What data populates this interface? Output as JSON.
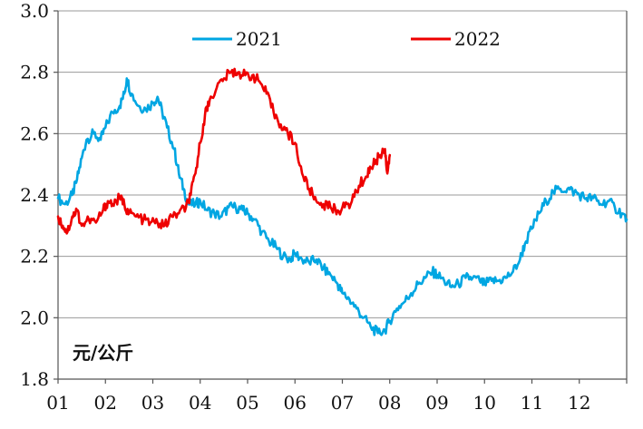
{
  "chart_data": {
    "type": "line",
    "title": "",
    "xlabel": "",
    "ylabel": "",
    "unit_label": "元/公斤",
    "x_ticks": [
      "01",
      "02",
      "03",
      "04",
      "05",
      "06",
      "07",
      "08",
      "09",
      "10",
      "11",
      "12"
    ],
    "y_ticks": [
      "1.8",
      "2.0",
      "2.2",
      "2.4",
      "2.6",
      "2.8",
      "3.0"
    ],
    "ylim": [
      1.8,
      3.0
    ],
    "xlim": [
      1,
      13
    ],
    "grid": true,
    "legend_position": "top",
    "series": [
      {
        "name": "2021",
        "color": "#00A6E2",
        "points": [
          [
            1.0,
            2.39
          ],
          [
            1.15,
            2.37
          ],
          [
            1.3,
            2.4
          ],
          [
            1.4,
            2.45
          ],
          [
            1.5,
            2.52
          ],
          [
            1.6,
            2.58
          ],
          [
            1.75,
            2.6
          ],
          [
            1.9,
            2.58
          ],
          [
            2.0,
            2.62
          ],
          [
            2.15,
            2.67
          ],
          [
            2.3,
            2.69
          ],
          [
            2.4,
            2.73
          ],
          [
            2.45,
            2.78
          ],
          [
            2.55,
            2.73
          ],
          [
            2.7,
            2.69
          ],
          [
            2.85,
            2.68
          ],
          [
            3.0,
            2.7
          ],
          [
            3.1,
            2.72
          ],
          [
            3.2,
            2.67
          ],
          [
            3.3,
            2.62
          ],
          [
            3.45,
            2.55
          ],
          [
            3.55,
            2.47
          ],
          [
            3.65,
            2.42
          ],
          [
            3.75,
            2.37
          ],
          [
            3.9,
            2.37
          ],
          [
            4.0,
            2.38
          ],
          [
            4.15,
            2.35
          ],
          [
            4.3,
            2.34
          ],
          [
            4.45,
            2.33
          ],
          [
            4.6,
            2.36
          ],
          [
            4.75,
            2.36
          ],
          [
            4.9,
            2.35
          ],
          [
            5.0,
            2.34
          ],
          [
            5.15,
            2.32
          ],
          [
            5.3,
            2.28
          ],
          [
            5.45,
            2.25
          ],
          [
            5.6,
            2.23
          ],
          [
            5.75,
            2.2
          ],
          [
            5.9,
            2.19
          ],
          [
            6.0,
            2.21
          ],
          [
            6.15,
            2.19
          ],
          [
            6.3,
            2.18
          ],
          [
            6.45,
            2.19
          ],
          [
            6.6,
            2.16
          ],
          [
            6.75,
            2.14
          ],
          [
            6.9,
            2.11
          ],
          [
            7.0,
            2.08
          ],
          [
            7.15,
            2.06
          ],
          [
            7.3,
            2.03
          ],
          [
            7.45,
            2.0
          ],
          [
            7.6,
            1.97
          ],
          [
            7.75,
            1.95
          ],
          [
            7.9,
            1.96
          ],
          [
            8.0,
            1.99
          ],
          [
            8.15,
            2.03
          ],
          [
            8.3,
            2.05
          ],
          [
            8.45,
            2.08
          ],
          [
            8.6,
            2.11
          ],
          [
            8.75,
            2.13
          ],
          [
            8.9,
            2.15
          ],
          [
            9.0,
            2.14
          ],
          [
            9.15,
            2.12
          ],
          [
            9.3,
            2.1
          ],
          [
            9.45,
            2.11
          ],
          [
            9.6,
            2.13
          ],
          [
            9.75,
            2.13
          ],
          [
            9.9,
            2.12
          ],
          [
            10.0,
            2.11
          ],
          [
            10.15,
            2.12
          ],
          [
            10.3,
            2.12
          ],
          [
            10.45,
            2.13
          ],
          [
            10.6,
            2.15
          ],
          [
            10.75,
            2.19
          ],
          [
            10.85,
            2.24
          ],
          [
            11.0,
            2.29
          ],
          [
            11.15,
            2.34
          ],
          [
            11.3,
            2.38
          ],
          [
            11.45,
            2.41
          ],
          [
            11.6,
            2.42
          ],
          [
            11.75,
            2.42
          ],
          [
            11.9,
            2.41
          ],
          [
            12.0,
            2.4
          ],
          [
            12.15,
            2.39
          ],
          [
            12.3,
            2.39
          ],
          [
            12.45,
            2.37
          ],
          [
            12.6,
            2.38
          ],
          [
            12.75,
            2.36
          ],
          [
            12.9,
            2.34
          ],
          [
            13.0,
            2.32
          ]
        ]
      },
      {
        "name": "2022",
        "color": "#EE0000",
        "points": [
          [
            1.0,
            2.33
          ],
          [
            1.1,
            2.3
          ],
          [
            1.2,
            2.28
          ],
          [
            1.3,
            2.33
          ],
          [
            1.4,
            2.35
          ],
          [
            1.5,
            2.3
          ],
          [
            1.65,
            2.32
          ],
          [
            1.8,
            2.31
          ],
          [
            1.95,
            2.35
          ],
          [
            2.05,
            2.38
          ],
          [
            2.15,
            2.37
          ],
          [
            2.3,
            2.39
          ],
          [
            2.4,
            2.37
          ],
          [
            2.5,
            2.34
          ],
          [
            2.65,
            2.33
          ],
          [
            2.8,
            2.32
          ],
          [
            2.95,
            2.31
          ],
          [
            3.1,
            2.31
          ],
          [
            3.25,
            2.3
          ],
          [
            3.4,
            2.33
          ],
          [
            3.55,
            2.34
          ],
          [
            3.7,
            2.36
          ],
          [
            3.8,
            2.4
          ],
          [
            3.9,
            2.47
          ],
          [
            4.0,
            2.57
          ],
          [
            4.1,
            2.66
          ],
          [
            4.2,
            2.71
          ],
          [
            4.35,
            2.75
          ],
          [
            4.5,
            2.78
          ],
          [
            4.65,
            2.8
          ],
          [
            4.8,
            2.8
          ],
          [
            4.95,
            2.79
          ],
          [
            5.1,
            2.79
          ],
          [
            5.25,
            2.77
          ],
          [
            5.4,
            2.73
          ],
          [
            5.55,
            2.67
          ],
          [
            5.7,
            2.63
          ],
          [
            5.85,
            2.6
          ],
          [
            6.0,
            2.57
          ],
          [
            6.15,
            2.47
          ],
          [
            6.3,
            2.42
          ],
          [
            6.45,
            2.38
          ],
          [
            6.6,
            2.37
          ],
          [
            6.75,
            2.36
          ],
          [
            6.9,
            2.35
          ],
          [
            7.05,
            2.36
          ],
          [
            7.2,
            2.38
          ],
          [
            7.35,
            2.43
          ],
          [
            7.5,
            2.46
          ],
          [
            7.6,
            2.49
          ],
          [
            7.7,
            2.51
          ],
          [
            7.8,
            2.53
          ],
          [
            7.9,
            2.55
          ],
          [
            7.95,
            2.47
          ],
          [
            8.0,
            2.53
          ]
        ]
      }
    ]
  }
}
